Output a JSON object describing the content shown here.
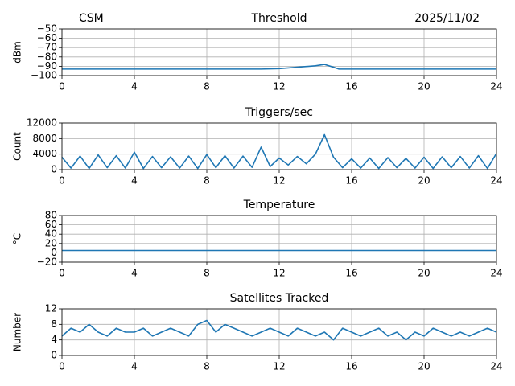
{
  "chart_data": [
    {
      "type": "line",
      "title": "Threshold",
      "title_left": "CSM",
      "title_right": "2025/11/02",
      "ylabel": "dBm",
      "xlim": [
        0,
        24
      ],
      "xticks": [
        0,
        4,
        8,
        12,
        16,
        20,
        24
      ],
      "ylim": [
        -100,
        -50
      ],
      "yticks": [
        {
          "value": -100,
          "label": "−100"
        },
        {
          "value": -90,
          "label": "−90"
        },
        {
          "value": -80,
          "label": "−80"
        },
        {
          "value": -70,
          "label": "−70"
        },
        {
          "value": -60,
          "label": "−60"
        },
        {
          "value": -50,
          "label": "−50"
        }
      ],
      "grid": true,
      "series": [
        {
          "color": "#1f77b4",
          "x": [
            0,
            2,
            4,
            6,
            8,
            10,
            11,
            12,
            13,
            14,
            14.5,
            15,
            15.3,
            16,
            18,
            20,
            22,
            24
          ],
          "values": [
            -93,
            -93,
            -93,
            -93,
            -93,
            -93,
            -93,
            -92.5,
            -91,
            -89.5,
            -88,
            -91,
            -93,
            -93,
            -93,
            -93,
            -93,
            -93
          ]
        }
      ]
    },
    {
      "type": "line",
      "title": "Triggers/sec",
      "ylabel": "Count",
      "xlim": [
        0,
        24
      ],
      "xticks": [
        0,
        4,
        8,
        12,
        16,
        20,
        24
      ],
      "ylim": [
        0,
        12000
      ],
      "yticks": [
        0,
        4000,
        8000,
        12000
      ],
      "grid": true,
      "series": [
        {
          "color": "#1f77b4",
          "x": [
            0,
            0.5,
            1,
            1.5,
            2,
            2.5,
            3,
            3.5,
            4,
            4.5,
            5,
            5.5,
            6,
            6.5,
            7,
            7.5,
            8,
            8.5,
            9,
            9.5,
            10,
            10.5,
            11,
            11.5,
            12,
            12.5,
            13,
            13.5,
            14,
            14.5,
            15,
            15.5,
            16,
            16.5,
            17,
            17.5,
            18,
            18.5,
            19,
            19.5,
            20,
            20.5,
            21,
            21.5,
            22,
            22.5,
            23,
            23.5,
            24
          ],
          "values": [
            3200,
            400,
            3500,
            300,
            3800,
            500,
            3600,
            400,
            4500,
            300,
            3400,
            500,
            3300,
            400,
            3500,
            300,
            3900,
            500,
            3600,
            400,
            3500,
            600,
            5800,
            800,
            3000,
            1200,
            3400,
            1500,
            4000,
            9000,
            3200,
            500,
            2800,
            400,
            3000,
            300,
            3100,
            500,
            2900,
            400,
            3200,
            300,
            3300,
            500,
            3400,
            400,
            3600,
            300,
            4200
          ]
        }
      ]
    },
    {
      "type": "line",
      "title": "Temperature",
      "ylabel": "°C",
      "xlim": [
        0,
        24
      ],
      "xticks": [
        0,
        4,
        8,
        12,
        16,
        20,
        24
      ],
      "ylim": [
        -20,
        80
      ],
      "yticks": [
        {
          "value": -20,
          "label": "−20"
        },
        0,
        20,
        40,
        60,
        80
      ],
      "grid": true,
      "series": [
        {
          "color": "#1f77b4",
          "x": [
            0,
            6,
            12,
            18,
            24
          ],
          "values": [
            5,
            5,
            5,
            5,
            5
          ]
        }
      ]
    },
    {
      "type": "line",
      "title": "Satellites Tracked",
      "ylabel": "Number",
      "xlim": [
        0,
        24
      ],
      "xticks": [
        0,
        4,
        8,
        12,
        16,
        20,
        24
      ],
      "ylim": [
        0,
        12
      ],
      "yticks": [
        0,
        4,
        8,
        12
      ],
      "grid": true,
      "series": [
        {
          "color": "#1f77b4",
          "x": [
            0,
            0.5,
            1,
            1.5,
            2,
            2.5,
            3,
            3.5,
            4,
            4.5,
            5,
            5.5,
            6,
            6.5,
            7,
            7.5,
            8,
            8.5,
            9,
            9.5,
            10,
            10.5,
            11,
            11.5,
            12,
            12.5,
            13,
            13.5,
            14,
            14.5,
            15,
            15.5,
            16,
            16.5,
            17,
            17.5,
            18,
            18.5,
            19,
            19.5,
            20,
            20.5,
            21,
            21.5,
            22,
            22.5,
            23,
            23.5,
            24
          ],
          "values": [
            5,
            7,
            6,
            8,
            6,
            5,
            7,
            6,
            6,
            7,
            5,
            6,
            7,
            6,
            5,
            8,
            9,
            6,
            8,
            7,
            6,
            5,
            6,
            7,
            6,
            5,
            7,
            6,
            5,
            6,
            4,
            7,
            6,
            5,
            6,
            7,
            5,
            6,
            4,
            6,
            5,
            7,
            6,
            5,
            6,
            5,
            6,
            7,
            6
          ]
        }
      ]
    }
  ]
}
